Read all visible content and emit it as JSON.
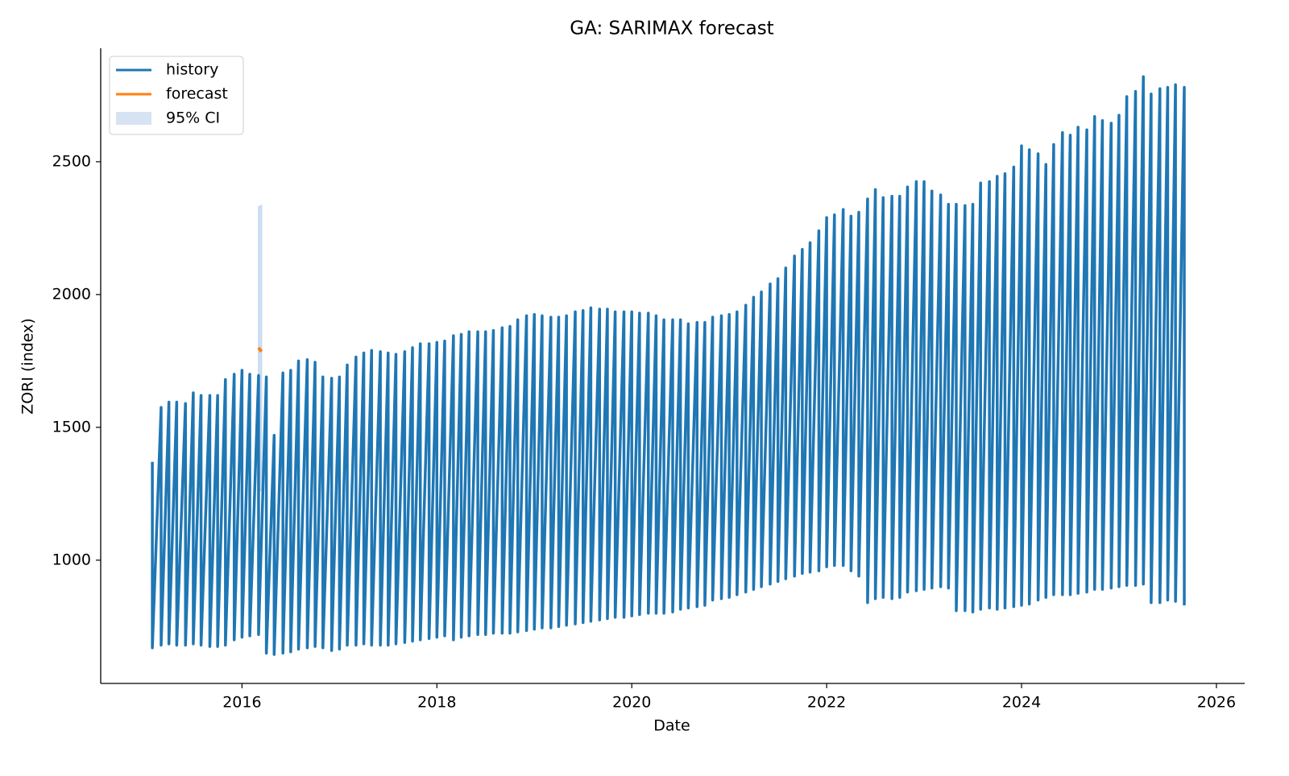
{
  "chart_data": {
    "type": "line",
    "title": "GA: SARIMAX forecast",
    "x_label": "Date",
    "y_label": "ZORI (index)",
    "xlim": [
      2014.55,
      2026.29
    ],
    "xticks": [
      2016,
      2018,
      2020,
      2022,
      2024,
      2026
    ],
    "ylim": [
      536,
      2927
    ],
    "yticks": [
      1000,
      1500,
      2000,
      2500
    ],
    "legend": "upper left",
    "grid": false,
    "series": [
      {
        "name": "history",
        "color": "#1f77b4",
        "x": [
          2015.08,
          2015.08,
          2015.17,
          2015.17,
          2015.25,
          2015.25,
          2015.33,
          2015.33,
          2015.42,
          2015.42,
          2015.5,
          2015.5,
          2015.58,
          2015.58,
          2015.67,
          2015.67,
          2015.75,
          2015.75,
          2015.83,
          2015.83,
          2015.92,
          2015.92,
          2016.0,
          2016.0,
          2016.08,
          2016.08,
          2016.17,
          2016.17,
          2016.25,
          2016.25,
          2016.33,
          2016.33,
          2016.42,
          2016.42,
          2016.5,
          2016.5,
          2016.58,
          2016.58,
          2016.67,
          2016.67,
          2016.75,
          2016.75,
          2016.83,
          2016.83,
          2016.92,
          2016.92,
          2017.0,
          2017.0,
          2017.08,
          2017.08,
          2017.17,
          2017.17,
          2017.25,
          2017.25,
          2017.33,
          2017.33,
          2017.42,
          2017.42,
          2017.5,
          2017.5,
          2017.58,
          2017.58,
          2017.67,
          2017.67,
          2017.75,
          2017.75,
          2017.83,
          2017.83,
          2017.92,
          2017.92,
          2018.0,
          2018.0,
          2018.08,
          2018.08,
          2018.17,
          2018.17,
          2018.25,
          2018.25,
          2018.33,
          2018.33,
          2018.42,
          2018.42,
          2018.5,
          2018.5,
          2018.58,
          2018.58,
          2018.67,
          2018.67,
          2018.75,
          2018.75,
          2018.83,
          2018.83,
          2018.92,
          2018.92,
          2019.0,
          2019.0,
          2019.08,
          2019.08,
          2019.17,
          2019.17,
          2019.25,
          2019.25,
          2019.33,
          2019.33,
          2019.42,
          2019.42,
          2019.5,
          2019.5,
          2019.58,
          2019.58,
          2019.67,
          2019.67,
          2019.75,
          2019.75,
          2019.83,
          2019.83,
          2019.92,
          2019.92,
          2020.0,
          2020.0,
          2020.08,
          2020.08,
          2020.17,
          2020.17,
          2020.25,
          2020.25,
          2020.33,
          2020.33,
          2020.42,
          2020.42,
          2020.5,
          2020.5,
          2020.58,
          2020.58,
          2020.67,
          2020.67,
          2020.75,
          2020.75,
          2020.83,
          2020.83,
          2020.92,
          2020.92,
          2021.0,
          2021.0,
          2021.08,
          2021.08,
          2021.17,
          2021.17,
          2021.25,
          2021.25,
          2021.33,
          2021.33,
          2021.42,
          2021.42,
          2021.5,
          2021.5,
          2021.58,
          2021.58,
          2021.67,
          2021.67,
          2021.75,
          2021.75,
          2021.83,
          2021.83,
          2021.92,
          2021.92,
          2022.0,
          2022.0,
          2022.08,
          2022.08,
          2022.17,
          2022.17,
          2022.25,
          2022.25,
          2022.33,
          2022.33,
          2022.42,
          2022.42,
          2022.5,
          2022.5,
          2022.58,
          2022.58,
          2022.67,
          2022.67,
          2022.75,
          2022.75,
          2022.83,
          2022.83,
          2022.92,
          2022.92,
          2023.0,
          2023.0,
          2023.08,
          2023.08,
          2023.17,
          2023.17,
          2023.25,
          2023.25,
          2023.33,
          2023.33,
          2023.42,
          2023.42,
          2023.5,
          2023.5,
          2023.58,
          2023.58,
          2023.67,
          2023.67,
          2023.75,
          2023.75,
          2023.83,
          2023.83,
          2023.92,
          2023.92,
          2024.0,
          2024.0,
          2024.08,
          2024.08,
          2024.17,
          2024.17,
          2024.25,
          2024.25,
          2024.33,
          2024.33,
          2024.42,
          2024.42,
          2024.5,
          2024.5,
          2024.58,
          2024.58,
          2024.67,
          2024.67,
          2024.75,
          2024.75,
          2024.83,
          2024.83,
          2024.92,
          2024.92,
          2025.0,
          2025.0,
          2025.08,
          2025.08,
          2025.17,
          2025.17,
          2025.25,
          2025.25,
          2025.33,
          2025.33,
          2025.42,
          2025.42,
          2025.5,
          2025.5,
          2025.58,
          2025.58,
          2025.67,
          2025.67
        ],
        "values": [
          1370,
          670,
          1575,
          680,
          1595,
          685,
          1595,
          680,
          1590,
          680,
          1630,
          685,
          1620,
          680,
          1620,
          675,
          1620,
          675,
          1680,
          680,
          1700,
          700,
          1715,
          710,
          1700,
          715,
          1695,
          720,
          1690,
          650,
          1470,
          645,
          1705,
          650,
          1715,
          655,
          1750,
          665,
          1755,
          670,
          1745,
          675,
          1690,
          670,
          1685,
          660,
          1690,
          665,
          1735,
          680,
          1765,
          680,
          1780,
          685,
          1790,
          680,
          1785,
          680,
          1780,
          680,
          1775,
          685,
          1785,
          690,
          1800,
          695,
          1815,
          700,
          1815,
          705,
          1820,
          710,
          1825,
          715,
          1845,
          700,
          1850,
          710,
          1860,
          715,
          1860,
          720,
          1860,
          720,
          1865,
          725,
          1875,
          725,
          1880,
          725,
          1905,
          730,
          1920,
          735,
          1925,
          740,
          1920,
          745,
          1915,
          745,
          1915,
          750,
          1920,
          755,
          1935,
          760,
          1940,
          765,
          1950,
          770,
          1945,
          775,
          1945,
          780,
          1935,
          785,
          1935,
          785,
          1935,
          790,
          1930,
          795,
          1930,
          800,
          1920,
          800,
          1905,
          800,
          1905,
          805,
          1905,
          815,
          1890,
          820,
          1895,
          825,
          1895,
          830,
          1915,
          850,
          1920,
          855,
          1925,
          860,
          1935,
          870,
          1960,
          880,
          1990,
          890,
          2010,
          900,
          2040,
          910,
          2060,
          920,
          2100,
          930,
          2145,
          940,
          2170,
          950,
          2195,
          955,
          2240,
          960,
          2290,
          975,
          2300,
          980,
          2320,
          980,
          2295,
          960,
          2310,
          940,
          2360,
          840,
          2395,
          855,
          2365,
          860,
          2370,
          855,
          2370,
          860,
          2405,
          880,
          2425,
          885,
          2425,
          890,
          2390,
          895,
          2375,
          900,
          2340,
          895,
          2340,
          810,
          2335,
          810,
          2340,
          805,
          2420,
          815,
          2425,
          820,
          2445,
          815,
          2455,
          820,
          2480,
          825,
          2560,
          830,
          2545,
          835,
          2530,
          850,
          2490,
          860,
          2565,
          870,
          2610,
          870,
          2600,
          870,
          2630,
          875,
          2620,
          880,
          2670,
          890,
          2655,
          890,
          2645,
          895,
          2675,
          900,
          2745,
          905,
          2765,
          905,
          2820,
          910,
          2755,
          840,
          2775,
          840,
          2780,
          850,
          2790,
          845,
          2780,
          830
        ]
      },
      {
        "name": "forecast",
        "color": "#ff7f0e",
        "x": [
          2016.17,
          2016.2
        ],
        "values": [
          1800,
          1785
        ]
      }
    ],
    "ci": {
      "name": "95% CI",
      "color": "#aec7e8",
      "x": [
        2016.17,
        2016.2
      ],
      "lower": [
        1270,
        1260
      ],
      "upper": [
        2330,
        2335
      ]
    }
  }
}
